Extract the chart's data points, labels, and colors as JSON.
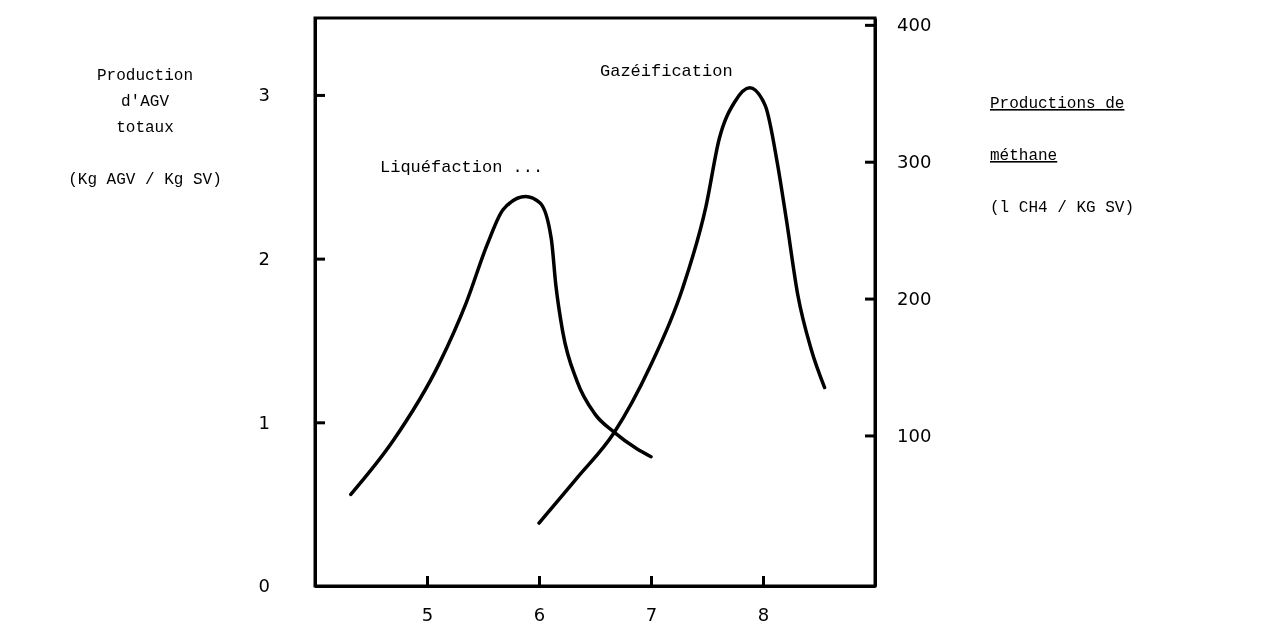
{
  "chart_data": {
    "type": "line",
    "ylabel": "Production\nd'AGV\ntotaux\n\n(Kg AGV / Kg SV)",
    "y2label": "Productions de\n\nméthane\n\n(l CH4 / KG SV)",
    "xlim": [
      4,
      9
    ],
    "xticks": [
      5,
      6,
      7,
      8
    ],
    "ylim": [
      0,
      3.47
    ],
    "yticks": [
      0,
      1,
      2,
      3
    ],
    "y2lim": [
      -10,
      405
    ],
    "y2ticks": [
      100,
      200,
      300,
      400
    ],
    "grid": false,
    "marker": "none",
    "line_style": "solid",
    "series": [
      {
        "name": "Liquéfaction ...",
        "color": "#000000",
        "x": [
          4.32,
          4.7,
          5.11,
          5.35,
          5.54,
          5.68,
          5.88,
          6.01,
          6.11,
          6.15,
          6.21,
          6.34,
          6.5,
          6.67,
          6.87,
          7.0
        ],
        "values": [
          0.56,
          0.89,
          1.36,
          1.73,
          2.09,
          2.3,
          2.38,
          2.34,
          2.12,
          1.84,
          1.56,
          1.25,
          1.05,
          0.94,
          0.84,
          0.79
        ]
      },
      {
        "name": "Gazéification",
        "color": "#000000",
        "axis": "y2",
        "x": [
          6.0,
          6.34,
          6.67,
          6.99,
          7.28,
          7.49,
          7.61,
          7.75,
          7.88,
          8.02,
          8.13,
          8.21,
          8.31,
          8.43,
          8.55
        ],
        "values": [
          36,
          69,
          102,
          150,
          207,
          267,
          317,
          344,
          354,
          341,
          298,
          257,
          203,
          163,
          135
        ]
      }
    ]
  }
}
